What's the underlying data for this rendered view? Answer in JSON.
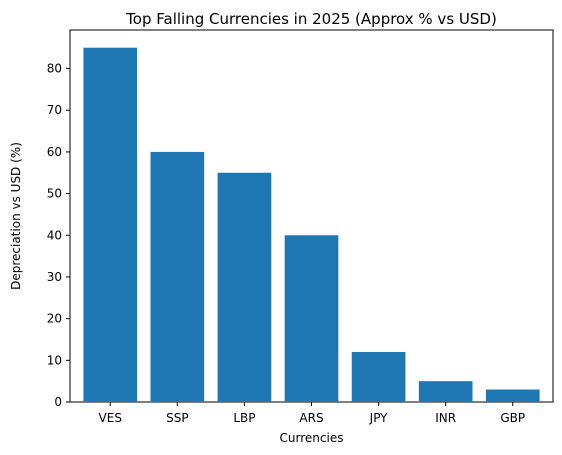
{
  "colors": {
    "bar": "#1f77b4",
    "axis": "#000000",
    "background": "#ffffff"
  },
  "chart_data": {
    "type": "bar",
    "title": "Top Falling Currencies in 2025 (Approx % vs USD)",
    "xlabel": "Currencies",
    "ylabel": "Depreciation vs USD (%)",
    "categories": [
      "VES",
      "SSP",
      "LBP",
      "ARS",
      "JPY",
      "INR",
      "GBP"
    ],
    "values": [
      85,
      60,
      55,
      40,
      12,
      5,
      3
    ],
    "ylim": [
      0,
      89.25
    ],
    "yticks": [
      0,
      10,
      20,
      30,
      40,
      50,
      60,
      70,
      80
    ],
    "grid": false,
    "legend": "none"
  }
}
